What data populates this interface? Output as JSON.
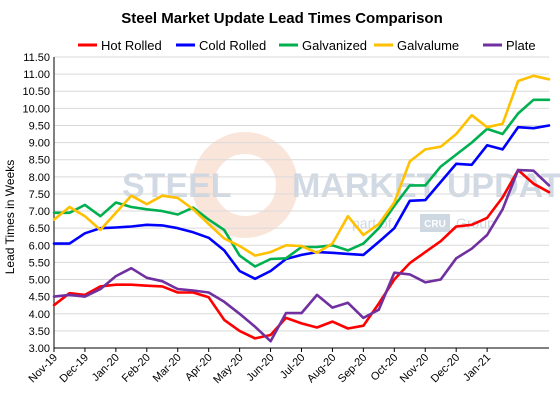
{
  "chart_data": {
    "type": "line",
    "title": "Steel Market Update Lead Times Comparison",
    "ylabel": "Lead Times in Weeks",
    "xlabel": "",
    "ylim": [
      3.0,
      11.5
    ],
    "yticks": [
      "3.00",
      "3.50",
      "4.00",
      "4.50",
      "5.00",
      "5.50",
      "6.00",
      "6.50",
      "7.00",
      "7.50",
      "8.00",
      "8.50",
      "9.00",
      "9.50",
      "10.00",
      "10.50",
      "11.00",
      "11.50"
    ],
    "xtick_labels": [
      "Nov-19",
      "Dec-19",
      "Jan-20",
      "Feb-20",
      "Mar-20",
      "Apr-20",
      "May-20",
      "Jun-20",
      "Jul-20",
      "Aug-20",
      "Sep-20",
      "Oct-20",
      "Nov-20",
      "Dec-20",
      "Jan-21"
    ],
    "grid": true,
    "legend": "top",
    "points_per_month": 2,
    "series": [
      {
        "name": "Hot Rolled",
        "color": "#ff0000",
        "values": [
          4.25,
          4.6,
          4.55,
          4.8,
          4.85,
          4.85,
          4.82,
          4.8,
          4.62,
          4.62,
          4.48,
          3.82,
          3.5,
          3.28,
          3.38,
          3.88,
          3.72,
          3.6,
          3.77,
          3.57,
          3.65,
          4.3,
          5.0,
          5.48,
          5.8,
          6.12,
          6.55,
          6.6,
          6.8,
          7.4,
          8.2,
          7.8,
          7.55
        ]
      },
      {
        "name": "Cold Rolled",
        "color": "#0000ff",
        "values": [
          6.05,
          6.05,
          6.35,
          6.5,
          6.52,
          6.55,
          6.6,
          6.58,
          6.5,
          6.38,
          6.22,
          5.85,
          5.25,
          5.02,
          5.25,
          5.6,
          5.72,
          5.8,
          5.78,
          5.75,
          5.72,
          6.1,
          6.5,
          7.3,
          7.32,
          7.85,
          8.38,
          8.35,
          8.92,
          8.8,
          9.45,
          9.42,
          9.5
        ]
      },
      {
        "name": "Galvanized",
        "color": "#00b050",
        "values": [
          6.95,
          6.95,
          7.18,
          6.85,
          7.25,
          7.12,
          7.05,
          7.0,
          6.9,
          7.1,
          6.75,
          6.45,
          5.7,
          5.38,
          5.6,
          5.62,
          5.95,
          5.95,
          6.0,
          5.85,
          6.05,
          6.5,
          7.15,
          7.75,
          7.75,
          8.3,
          8.65,
          9.0,
          9.4,
          9.25,
          9.85,
          10.25,
          10.25
        ]
      },
      {
        "name": "Galvalume",
        "color": "#ffc000",
        "values": [
          6.75,
          7.12,
          6.85,
          6.45,
          6.95,
          7.45,
          7.2,
          7.45,
          7.38,
          7.05,
          6.62,
          6.2,
          5.98,
          5.7,
          5.8,
          6.0,
          5.98,
          5.78,
          6.05,
          6.85,
          6.3,
          6.62,
          7.25,
          8.45,
          8.8,
          8.88,
          9.25,
          9.8,
          9.45,
          9.55,
          10.8,
          10.95,
          10.85
        ]
      },
      {
        "name": "Plate",
        "color": "#7030a0",
        "values": [
          4.5,
          4.55,
          4.5,
          4.72,
          5.1,
          5.33,
          5.05,
          4.95,
          4.72,
          4.68,
          4.62,
          4.35,
          4.0,
          3.62,
          3.2,
          4.02,
          4.02,
          4.55,
          4.18,
          4.32,
          3.88,
          4.12,
          5.2,
          5.15,
          4.92,
          5.0,
          5.62,
          5.9,
          6.3,
          7.05,
          8.2,
          8.18,
          7.75
        ]
      }
    ]
  },
  "watermark": {
    "big_left": "STEEL",
    "big_right": "MARKET UPDATE",
    "small_left": "part of",
    "small_badge": "CRU",
    "small_right": "Group"
  }
}
